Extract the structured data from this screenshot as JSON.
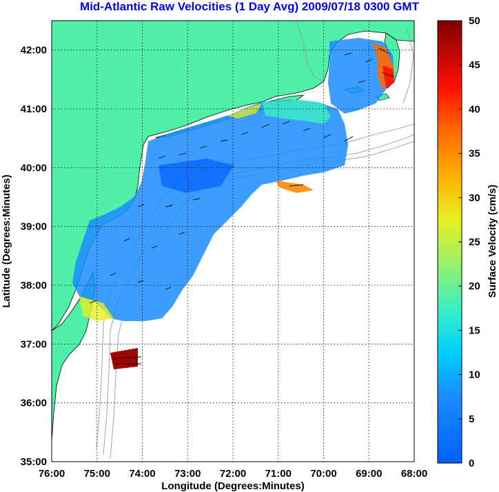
{
  "title": "Mid-Atlantic Raw Velocities (1 Day Avg) 2009/07/18 0300 GMT",
  "colors": {
    "land": "#50F0A8",
    "title": "#0000ee",
    "frame": "#000000"
  },
  "x_axis": {
    "label": "Longitude (Degrees:Minutes)",
    "ticks": [
      "76:00",
      "75:00",
      "74:00",
      "73:00",
      "72:00",
      "71:00",
      "70:00",
      "69:00",
      "68:00"
    ]
  },
  "y_axis": {
    "label": "Latitude (Degrees:Minutes)",
    "ticks": [
      "35:00",
      "36:00",
      "37:00",
      "38:00",
      "39:00",
      "40:00",
      "41:00",
      "42:00"
    ]
  },
  "colorbar": {
    "label": "Surface Velocity (cm/s)",
    "ticks": [
      "0",
      "5",
      "10",
      "15",
      "20",
      "25",
      "30",
      "35",
      "40",
      "45",
      "50"
    ],
    "range": [
      0,
      50
    ]
  },
  "map": {
    "lon_range": [
      -76,
      -68
    ],
    "lat_range": [
      35,
      42.5
    ],
    "grid": "dotted"
  }
}
